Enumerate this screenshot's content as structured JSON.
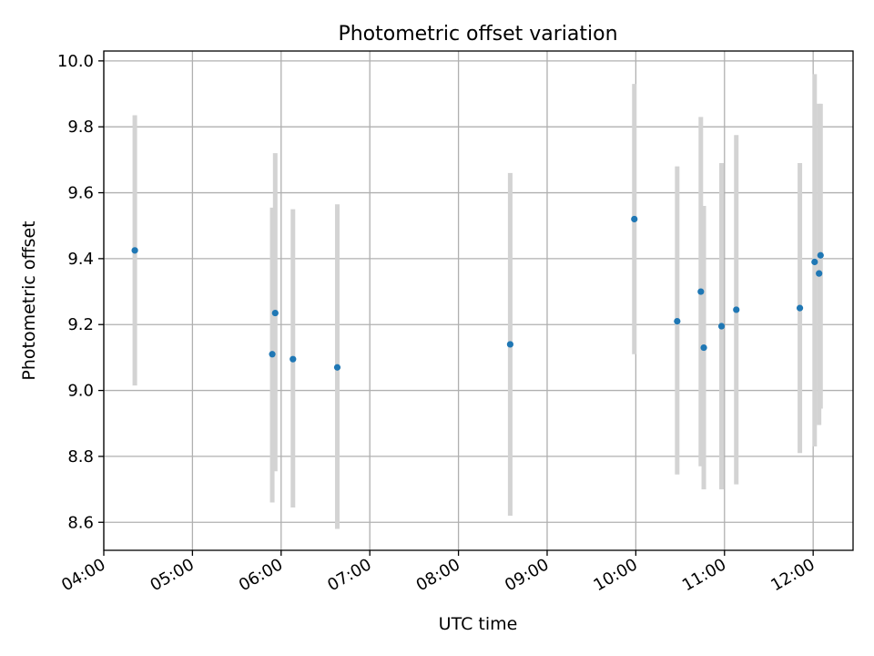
{
  "chart_data": {
    "type": "scatter",
    "title": "Photometric offset variation",
    "xlabel": "UTC time",
    "ylabel": "Photometric offset",
    "x_unit": "time_of_day",
    "xlim": [
      "04:00",
      "12:27"
    ],
    "ylim": [
      8.515,
      10.03
    ],
    "x_ticks": [
      "04:00",
      "05:00",
      "06:00",
      "07:00",
      "08:00",
      "09:00",
      "10:00",
      "11:00",
      "12:00"
    ],
    "y_ticks": [
      "8.6",
      "8.8",
      "9.0",
      "9.2",
      "9.4",
      "9.6",
      "9.8",
      "10.0"
    ],
    "grid": true,
    "point_color": "#1f77b4",
    "errorbar_color": "#d3d3d3",
    "points": [
      {
        "x": "04:21",
        "y": 9.425,
        "ylow": 9.015,
        "yhigh": 9.835
      },
      {
        "x": "05:54",
        "y": 9.11,
        "ylow": 8.66,
        "yhigh": 9.555
      },
      {
        "x": "05:56",
        "y": 9.235,
        "ylow": 8.755,
        "yhigh": 9.72
      },
      {
        "x": "06:08",
        "y": 9.095,
        "ylow": 8.645,
        "yhigh": 9.55
      },
      {
        "x": "06:38",
        "y": 9.07,
        "ylow": 8.58,
        "yhigh": 9.565
      },
      {
        "x": "08:35",
        "y": 9.14,
        "ylow": 8.62,
        "yhigh": 9.66
      },
      {
        "x": "09:59",
        "y": 9.52,
        "ylow": 9.11,
        "yhigh": 9.93
      },
      {
        "x": "10:28",
        "y": 9.21,
        "ylow": 8.745,
        "yhigh": 9.68
      },
      {
        "x": "10:44",
        "y": 9.3,
        "ylow": 8.77,
        "yhigh": 9.83
      },
      {
        "x": "10:46",
        "y": 9.13,
        "ylow": 8.7,
        "yhigh": 9.56
      },
      {
        "x": "10:58",
        "y": 9.195,
        "ylow": 8.7,
        "yhigh": 9.69
      },
      {
        "x": "11:08",
        "y": 9.245,
        "ylow": 8.715,
        "yhigh": 9.775
      },
      {
        "x": "11:51",
        "y": 9.25,
        "ylow": 8.81,
        "yhigh": 9.69
      },
      {
        "x": "12:01",
        "y": 9.39,
        "ylow": 8.83,
        "yhigh": 9.96
      },
      {
        "x": "12:04",
        "y": 9.355,
        "ylow": 8.895,
        "yhigh": 9.87
      },
      {
        "x": "12:05",
        "y": 9.41,
        "ylow": 8.945,
        "yhigh": 9.87
      }
    ]
  }
}
